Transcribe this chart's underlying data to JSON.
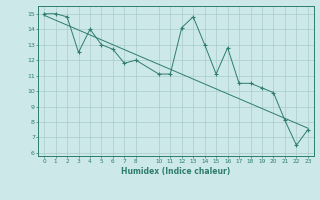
{
  "title": "",
  "xlabel": "Humidex (Indice chaleur)",
  "x_data": [
    0,
    1,
    2,
    3,
    4,
    5,
    6,
    7,
    8,
    10,
    11,
    12,
    13,
    14,
    15,
    16,
    17,
    18,
    19,
    20,
    21,
    22,
    23
  ],
  "y_data": [
    15,
    15,
    14.8,
    12.5,
    14,
    13,
    12.7,
    11.8,
    12,
    11.1,
    11.1,
    14.1,
    14.8,
    13,
    11.1,
    12.8,
    10.5,
    10.5,
    10.2,
    9.9,
    8.1,
    6.5,
    7.5
  ],
  "line_color": "#2e7d6e",
  "background_color": "#cce8e8",
  "grid_color": "#aacccc",
  "xlim": [
    -0.5,
    23.5
  ],
  "ylim": [
    5.8,
    15.5
  ],
  "yticks": [
    6,
    7,
    8,
    9,
    10,
    11,
    12,
    13,
    14,
    15
  ],
  "xticks": [
    0,
    1,
    2,
    3,
    4,
    5,
    6,
    7,
    8,
    10,
    11,
    12,
    13,
    14,
    15,
    16,
    17,
    18,
    19,
    20,
    21,
    22,
    23
  ],
  "trend_y_start": 14.9,
  "trend_y_end": 7.6
}
